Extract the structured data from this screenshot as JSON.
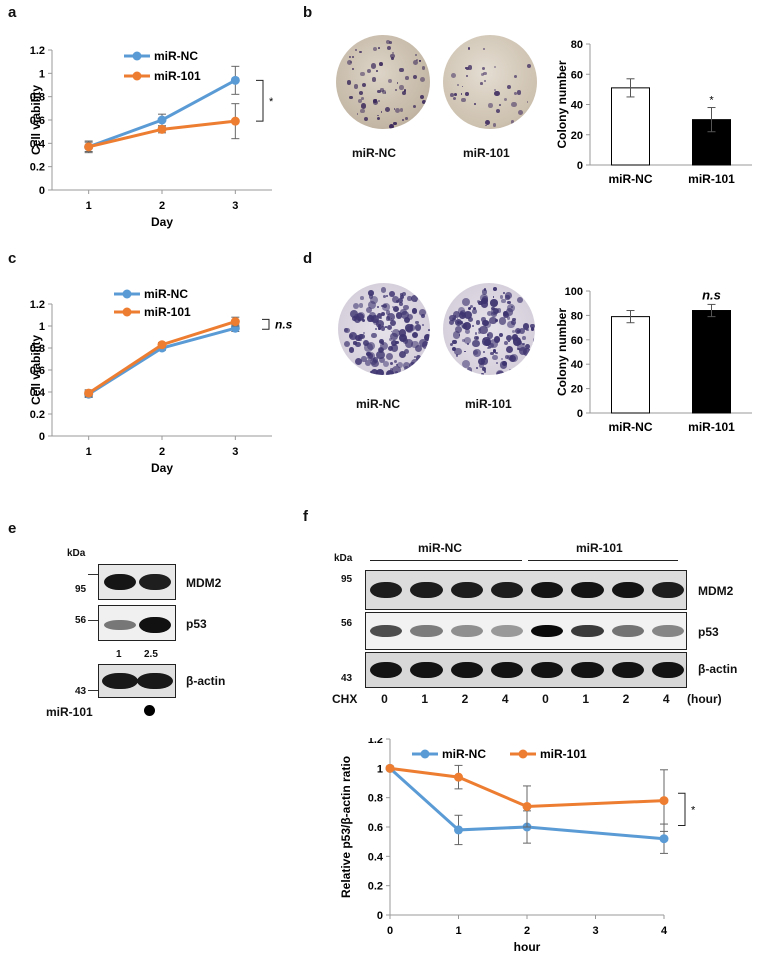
{
  "panel_labels": {
    "a": "a",
    "b": "b",
    "c": "c",
    "d": "d",
    "e": "e",
    "f": "f"
  },
  "chart_data": [
    {
      "id": "a",
      "type": "line",
      "xlabel": "Day",
      "ylabel": "Cell viability",
      "x": [
        1,
        2,
        3
      ],
      "ylim": [
        0,
        1.2
      ],
      "yticks": [
        "0",
        "0.2",
        "0.4",
        "0.6",
        "0.8",
        "1",
        "1.2"
      ],
      "series": [
        {
          "name": "miR-NC",
          "color": "#5b9bd5",
          "values": [
            0.37,
            0.6,
            0.94
          ],
          "err": [
            0.05,
            0.05,
            0.12
          ]
        },
        {
          "name": "miR-101",
          "color": "#ed7d31",
          "values": [
            0.37,
            0.52,
            0.59
          ],
          "err": [
            0.04,
            0.03,
            0.15
          ]
        }
      ],
      "annotation": "*"
    },
    {
      "id": "b",
      "type": "bar",
      "ylabel": "Colony number",
      "categories": [
        "miR-NC",
        "miR-101"
      ],
      "values": [
        51,
        30
      ],
      "err": [
        6,
        8
      ],
      "ylim": [
        0,
        80
      ],
      "yticks": [
        "0",
        "20",
        "40",
        "60",
        "80"
      ],
      "annotation": "*"
    },
    {
      "id": "c",
      "type": "line",
      "xlabel": "Day",
      "ylabel": "Cell viability",
      "x": [
        1,
        2,
        3
      ],
      "ylim": [
        0,
        1.2
      ],
      "yticks": [
        "0",
        "0.2",
        "0.4",
        "0.6",
        "0.8",
        "1",
        "1.2"
      ],
      "series": [
        {
          "name": "miR-NC",
          "color": "#5b9bd5",
          "values": [
            0.38,
            0.8,
            0.98
          ],
          "err": [
            0.03,
            0.02,
            0.03
          ]
        },
        {
          "name": "miR-101",
          "color": "#ed7d31",
          "values": [
            0.39,
            0.83,
            1.04
          ],
          "err": [
            0.03,
            0.02,
            0.04
          ]
        }
      ],
      "annotation": "n.s"
    },
    {
      "id": "d",
      "type": "bar",
      "ylabel": "Colony number",
      "categories": [
        "miR-NC",
        "miR-101"
      ],
      "values": [
        79,
        84
      ],
      "err": [
        5,
        5
      ],
      "ylim": [
        0,
        100
      ],
      "yticks": [
        "0",
        "20",
        "40",
        "60",
        "80",
        "100"
      ],
      "annotation": "n.s"
    },
    {
      "id": "f",
      "type": "line",
      "xlabel": "hour",
      "ylabel": "Relative p53/β-actin ratio",
      "x": [
        0,
        1,
        2,
        4
      ],
      "xlim": [
        0,
        4
      ],
      "ylim": [
        0,
        1.2
      ],
      "xticks": [
        "0",
        "1",
        "2",
        "3",
        "4"
      ],
      "yticks": [
        "0",
        "0.2",
        "0.4",
        "0.6",
        "0.8",
        "1",
        "1.2"
      ],
      "series": [
        {
          "name": "miR-NC",
          "color": "#5b9bd5",
          "values": [
            1.0,
            0.58,
            0.6,
            0.52
          ],
          "err": [
            0,
            0.1,
            0.11,
            0.1
          ]
        },
        {
          "name": "miR-101",
          "color": "#ed7d31",
          "values": [
            1.0,
            0.94,
            0.74,
            0.78
          ],
          "err": [
            0,
            0.08,
            0.14,
            0.21
          ]
        }
      ],
      "annotation": "*"
    }
  ],
  "colony_images": {
    "b": [
      "miR-NC",
      "miR-101"
    ],
    "d": [
      "miR-NC",
      "miR-101"
    ]
  },
  "blot_e": {
    "kda": "kDa",
    "markers": [
      "95",
      "56",
      "43"
    ],
    "rows": [
      "MDM2",
      "p53",
      "β-actin"
    ],
    "quant": [
      "1",
      "2.5"
    ],
    "treatment_label": "miR-101"
  },
  "blot_f": {
    "kda": "kDa",
    "groups": [
      "miR-NC",
      "miR-101"
    ],
    "markers": [
      "95",
      "56",
      "43"
    ],
    "rows": [
      "MDM2",
      "p53",
      "β-actin"
    ],
    "cond_label": "CHX",
    "hours": [
      "0",
      "1",
      "2",
      "4",
      "0",
      "1",
      "2",
      "4"
    ],
    "unit": "(hour)"
  }
}
